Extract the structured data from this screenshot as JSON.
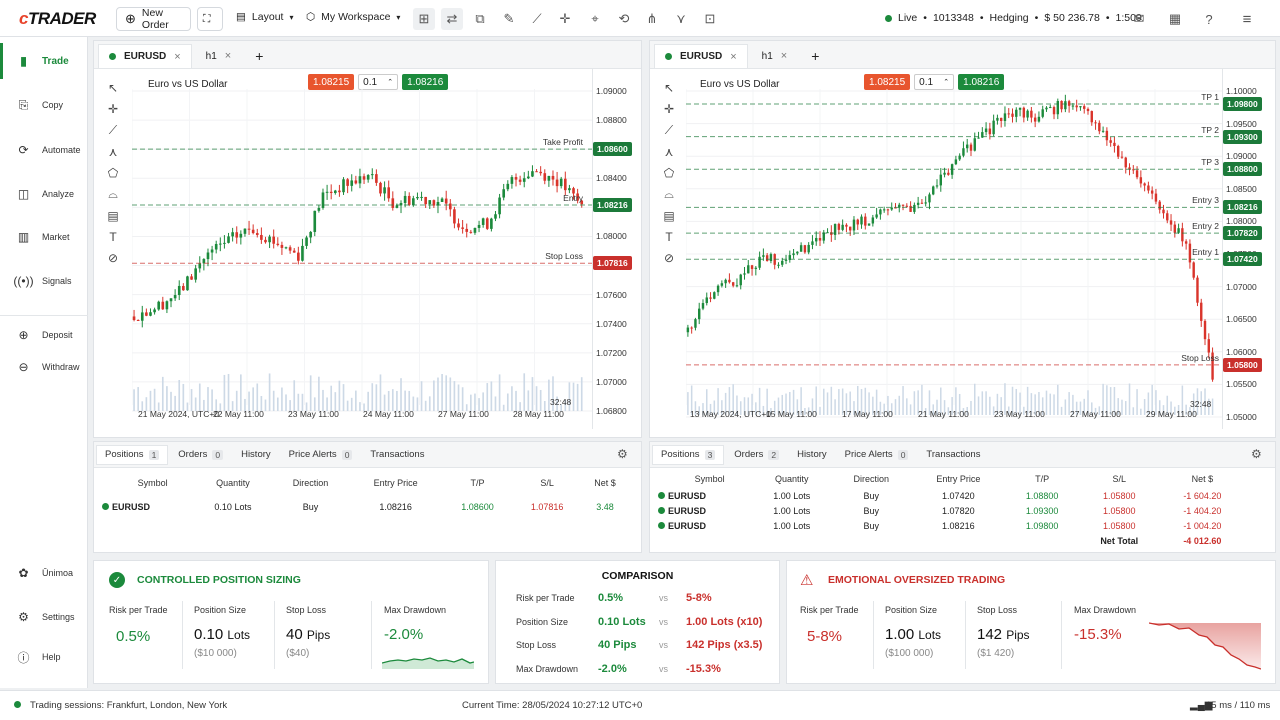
{
  "header": {
    "logo": "cTRADER",
    "new_order": "New Order",
    "layout": "Layout",
    "workspace": "My Workspace",
    "account_status": "Live",
    "account_id": "1013348",
    "account_mode": "Hedging",
    "balance": "$ 50 236.78",
    "leverage": "1:500"
  },
  "sidebar": {
    "items": [
      {
        "label": "Trade"
      },
      {
        "label": "Copy"
      },
      {
        "label": "Automate"
      },
      {
        "label": "Analyze"
      },
      {
        "label": "Market"
      },
      {
        "label": "Signals"
      },
      {
        "label": "Deposit"
      },
      {
        "label": "Withdraw"
      },
      {
        "label": "Ūnimoa"
      },
      {
        "label": "Settings"
      },
      {
        "label": "Help"
      }
    ]
  },
  "left_chart": {
    "tab_symbol": "EURUSD",
    "tab_timeframe": "h1",
    "title": "Euro vs US Dollar",
    "sell_price": "1.08215",
    "quantity": "0.1",
    "buy_price": "1.08216",
    "yticks": [
      "1.09000",
      "1.08800",
      "1.08600",
      "1.08400",
      "1.08200",
      "1.08000",
      "1.07800",
      "1.07600",
      "1.07400",
      "1.07200",
      "1.07000",
      "1.06800"
    ],
    "xticks": [
      "21 May 2024, UTC+0",
      "22 May 11:00",
      "23 May 11:00",
      "24 May 11:00",
      "27 May 11:00",
      "28 May 11:00"
    ],
    "timer": "32:48",
    "levels": [
      {
        "label": "Take Profit",
        "value": "1.08600",
        "color": "#1c7a3a"
      },
      {
        "label": "Entry",
        "value": "1.08216",
        "color": "#1c7a3a"
      },
      {
        "label": "Stop Loss",
        "value": "1.07816",
        "color": "#c9302c"
      }
    ]
  },
  "right_chart": {
    "tab_symbol": "EURUSD",
    "tab_timeframe": "h1",
    "title": "Euro vs US Dollar",
    "sell_price": "1.08215",
    "quantity": "0.1",
    "buy_price": "1.08216",
    "yticks": [
      "1.10000",
      "1.09500",
      "1.09000",
      "1.08500",
      "1.08000",
      "1.07500",
      "1.07000",
      "1.06500",
      "1.06000",
      "1.05500",
      "1.05000"
    ],
    "xticks": [
      "13 May 2024, UTC+0",
      "15 May 11:00",
      "17 May 11:00",
      "21 May 11:00",
      "23 May 11:00",
      "27 May 11:00",
      "29 May 11:00"
    ],
    "timer": "32:48",
    "levels": [
      {
        "label": "TP 1",
        "value": "1.09800",
        "color": "#1c7a3a"
      },
      {
        "label": "TP 2",
        "value": "1.09300",
        "color": "#1c7a3a"
      },
      {
        "label": "TP 3",
        "value": "1.08800",
        "color": "#1c7a3a"
      },
      {
        "label": "Entry 3",
        "value": "1.08216",
        "color": "#1c7a3a"
      },
      {
        "label": "Entry 2",
        "value": "1.07820",
        "color": "#1c7a3a"
      },
      {
        "label": "Entry 1",
        "value": "1.07420",
        "color": "#1c7a3a"
      },
      {
        "label": "Stop Loss",
        "value": "1.05800",
        "color": "#c9302c"
      }
    ]
  },
  "left_positions": {
    "tabs": [
      {
        "label": "Positions",
        "count": "1"
      },
      {
        "label": "Orders",
        "count": "0"
      },
      {
        "label": "History",
        "count": ""
      },
      {
        "label": "Price Alerts",
        "count": "0"
      },
      {
        "label": "Transactions",
        "count": ""
      }
    ],
    "columns": [
      "Symbol",
      "Quantity",
      "Direction",
      "Entry Price",
      "T/P",
      "S/L",
      "Net $"
    ],
    "rows": [
      [
        "EURUSD",
        "0.10 Lots",
        "Buy",
        "1.08216",
        "1.08600",
        "1.07816",
        "3.48"
      ]
    ]
  },
  "right_positions": {
    "tabs": [
      {
        "label": "Positions",
        "count": "3"
      },
      {
        "label": "Orders",
        "count": "2"
      },
      {
        "label": "History",
        "count": ""
      },
      {
        "label": "Price Alerts",
        "count": "0"
      },
      {
        "label": "Transactions",
        "count": ""
      }
    ],
    "columns": [
      "Symbol",
      "Quantity",
      "Direction",
      "Entry Price",
      "T/P",
      "S/L",
      "Net $"
    ],
    "rows": [
      [
        "EURUSD",
        "1.00 Lots",
        "Buy",
        "1.07420",
        "1.08800",
        "1.05800",
        "-1 604.20"
      ],
      [
        "EURUSD",
        "1.00 Lots",
        "Buy",
        "1.07820",
        "1.09300",
        "1.05800",
        "-1 404.20"
      ],
      [
        "EURUSD",
        "1.00 Lots",
        "Buy",
        "1.08216",
        "1.09800",
        "1.05800",
        "-1 004.20"
      ]
    ],
    "net_total_label": "Net Total",
    "net_total_value": "-4 012.60"
  },
  "controlled": {
    "title": "CONTROLLED POSITION SIZING",
    "risk_label": "Risk per Trade",
    "risk_value": "0.5%",
    "size_label": "Position Size",
    "size_value": "0.10",
    "size_unit": "Lots",
    "size_sub": "($10 000)",
    "sl_label": "Stop Loss",
    "sl_value": "40",
    "sl_unit": "Pips",
    "sl_sub": "($40)",
    "dd_label": "Max Drawdown",
    "dd_value": "-2.0%"
  },
  "comparison": {
    "title": "COMPARISON",
    "vs": "vs",
    "rows": [
      {
        "label": "Risk per Trade",
        "left": "0.5%",
        "right": "5-8%"
      },
      {
        "label": "Position Size",
        "left": "0.10 Lots",
        "right": "1.00 Lots (x10)"
      },
      {
        "label": "Stop Loss",
        "left": "40 Pips",
        "right": "142 Pips (x3.5)"
      },
      {
        "label": "Max Drawdown",
        "left": "-2.0%",
        "right": "-15.3%"
      }
    ]
  },
  "emotional": {
    "title": "EMOTIONAL OVERSIZED TRADING",
    "risk_label": "Risk per Trade",
    "risk_value": "5-8%",
    "size_label": "Position Size",
    "size_value": "1.00",
    "size_unit": "Lots",
    "size_sub": "($100 000)",
    "sl_label": "Stop Loss",
    "sl_value": "142",
    "sl_unit": "Pips",
    "sl_sub": "($1 420)",
    "dd_label": "Max Drawdown",
    "dd_value": "-15.3%"
  },
  "status": {
    "sessions": "Trading sessions: Frankfurt, London, New York",
    "time": "Current Time: 28/05/2024 10:27:12  UTC+0",
    "latency": "15 ms / 110 ms"
  },
  "colors": {
    "green": "#1c8a3c",
    "red": "#c9302c",
    "orange": "#e8552e"
  }
}
